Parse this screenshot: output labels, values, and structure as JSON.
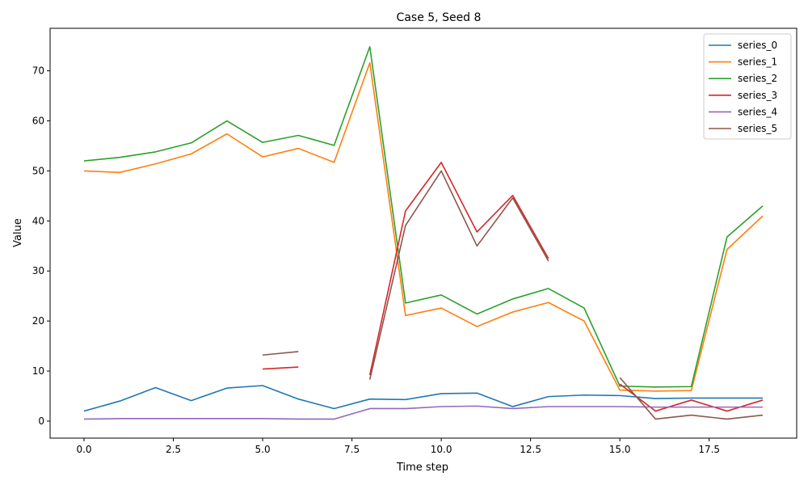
{
  "chart_data": {
    "type": "line",
    "title": "Case 5, Seed 8",
    "xlabel": "Time step",
    "ylabel": "Value",
    "xlim": [
      -0.95,
      19.95
    ],
    "ylim": [
      -3.4,
      78.5
    ],
    "xticks": [
      0.0,
      2.5,
      5.0,
      7.5,
      10.0,
      12.5,
      15.0,
      17.5
    ],
    "xtick_labels": [
      "0.0",
      "2.5",
      "5.0",
      "7.5",
      "10.0",
      "12.5",
      "15.0",
      "17.5"
    ],
    "yticks": [
      0,
      10,
      20,
      30,
      40,
      50,
      60,
      70
    ],
    "ytick_labels": [
      "0",
      "10",
      "20",
      "30",
      "40",
      "50",
      "60",
      "70"
    ],
    "grid": false,
    "legend_position": "top-right",
    "x": [
      0,
      1,
      2,
      3,
      4,
      5,
      6,
      7,
      8,
      9,
      10,
      11,
      12,
      13,
      14,
      15,
      16,
      17,
      18,
      19
    ],
    "series": [
      {
        "name": "series_0",
        "color": "#1f77b4",
        "values": [
          2.0,
          4.0,
          6.7,
          4.1,
          6.6,
          7.1,
          4.4,
          2.5,
          4.4,
          4.3,
          5.5,
          5.6,
          2.9,
          4.9,
          5.2,
          5.1,
          4.5,
          4.6,
          4.6,
          4.6
        ]
      },
      {
        "name": "series_1",
        "color": "#ff7f0e",
        "values": [
          50.0,
          49.7,
          51.4,
          53.4,
          57.4,
          52.8,
          54.5,
          51.7,
          71.6,
          21.1,
          22.6,
          18.9,
          21.8,
          23.7,
          20.0,
          6.2,
          6.0,
          6.1,
          34.3,
          41.0
        ]
      },
      {
        "name": "series_2",
        "color": "#2ca02c",
        "values": [
          52.0,
          52.7,
          53.8,
          55.6,
          60.0,
          55.7,
          57.1,
          55.1,
          74.8,
          23.6,
          25.2,
          21.4,
          24.4,
          26.5,
          22.6,
          7.0,
          6.8,
          6.9,
          36.8,
          43.0
        ]
      },
      {
        "name": "series_3",
        "color": "#d62728",
        "values": [
          null,
          null,
          null,
          null,
          null,
          10.4,
          10.8,
          null,
          9.2,
          42.0,
          51.7,
          37.8,
          45.1,
          32.5,
          null,
          7.4,
          2.0,
          4.2,
          2.0,
          4.2
        ]
      },
      {
        "name": "series_4",
        "color": "#9467bd",
        "values": [
          0.4,
          0.5,
          0.5,
          0.5,
          0.5,
          0.5,
          0.4,
          0.4,
          2.5,
          2.5,
          2.9,
          3.0,
          2.5,
          2.9,
          2.9,
          2.9,
          2.8,
          2.8,
          2.8,
          2.8
        ]
      },
      {
        "name": "series_5",
        "color": "#8c564b",
        "values": [
          null,
          null,
          null,
          null,
          null,
          13.2,
          13.9,
          null,
          8.3,
          39.1,
          50.0,
          35.0,
          44.6,
          32.0,
          null,
          8.7,
          0.4,
          1.2,
          0.4,
          1.2
        ]
      }
    ]
  }
}
